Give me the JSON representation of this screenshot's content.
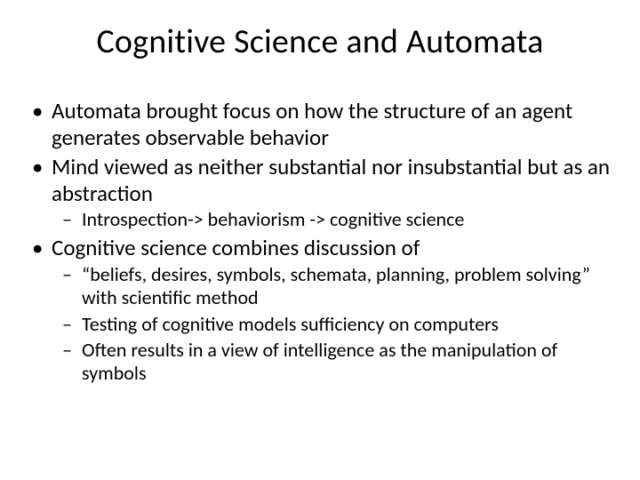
{
  "slide": {
    "title": "Cognitive Science and Automata",
    "title_fontsize": 38,
    "body_fontsize_l1": 25,
    "body_fontsize_l2": 22,
    "background_color": "#ffffff",
    "text_color": "#000000",
    "font_family": "Calibri",
    "bullets": [
      {
        "text": "Automata brought focus on how the structure of an agent generates observable behavior",
        "children": []
      },
      {
        "text": "Mind viewed as neither substantial nor insubstantial but as an abstraction",
        "children": [
          {
            "text": "Introspection-> behaviorism -> cognitive science"
          }
        ]
      },
      {
        "text": "Cognitive science combines discussion of",
        "children": [
          {
            "text": "“beliefs, desires, symbols, schemata, planning, problem solving” with scientific method"
          },
          {
            "text": "Testing of cognitive models sufficiency on computers"
          },
          {
            "text": "Often results in a view of intelligence as the manipulation of symbols"
          }
        ]
      }
    ]
  }
}
